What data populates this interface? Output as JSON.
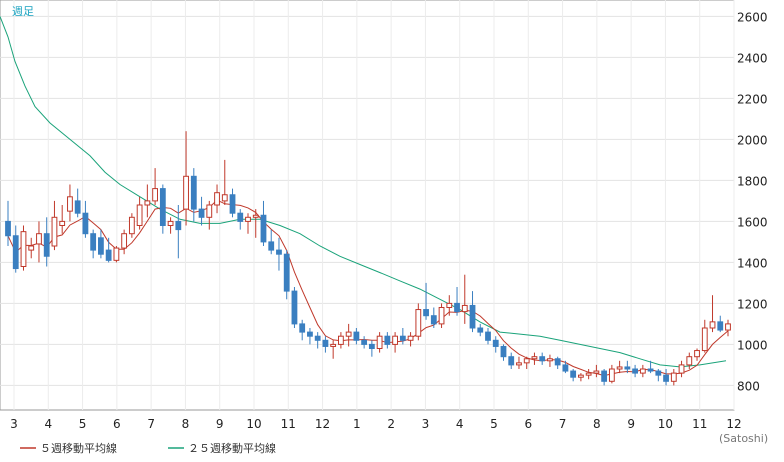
{
  "chart_data": {
    "type": "candlestick",
    "period_label": "週足",
    "unit_label": "(Satoshi)",
    "y_ticks": [
      800,
      1000,
      1200,
      1400,
      1600,
      1800,
      2000,
      2200,
      2400,
      2600
    ],
    "ylim": [
      680,
      2680
    ],
    "x_tick_labels": [
      "3",
      "4",
      "5",
      "6",
      "7",
      "8",
      "9",
      "10",
      "11",
      "12",
      "1",
      "2",
      "3",
      "4",
      "5",
      "6",
      "7",
      "8",
      "9",
      "10",
      "11",
      "12"
    ],
    "grid": true,
    "colors": {
      "up": "#c0392b",
      "down": "#3a7fc0",
      "ma5": "#c0392b",
      "ma25": "#1aa37a"
    },
    "legend": [
      {
        "label": "５週移動平均線",
        "color": "#c0392b"
      },
      {
        "label": "２５週移動平均線",
        "color": "#1aa37a"
      }
    ],
    "candles": [
      [
        1600,
        1700,
        1480,
        1530
      ],
      [
        1530,
        1580,
        1350,
        1370
      ],
      [
        1380,
        1580,
        1360,
        1550
      ],
      [
        1460,
        1520,
        1420,
        1480
      ],
      [
        1490,
        1600,
        1400,
        1540
      ],
      [
        1540,
        1620,
        1380,
        1430
      ],
      [
        1480,
        1700,
        1460,
        1620
      ],
      [
        1580,
        1680,
        1540,
        1600
      ],
      [
        1650,
        1780,
        1600,
        1720
      ],
      [
        1700,
        1760,
        1620,
        1640
      ],
      [
        1640,
        1700,
        1520,
        1540
      ],
      [
        1540,
        1560,
        1420,
        1460
      ],
      [
        1520,
        1560,
        1420,
        1440
      ],
      [
        1460,
        1520,
        1400,
        1410
      ],
      [
        1410,
        1480,
        1400,
        1470
      ],
      [
        1470,
        1560,
        1440,
        1540
      ],
      [
        1540,
        1640,
        1520,
        1620
      ],
      [
        1580,
        1720,
        1560,
        1680
      ],
      [
        1680,
        1780,
        1620,
        1700
      ],
      [
        1700,
        1860,
        1680,
        1760
      ],
      [
        1760,
        1780,
        1540,
        1580
      ],
      [
        1580,
        1620,
        1540,
        1600
      ],
      [
        1600,
        1680,
        1420,
        1560
      ],
      [
        1660,
        2040,
        1580,
        1820
      ],
      [
        1820,
        1860,
        1600,
        1660
      ],
      [
        1660,
        1720,
        1580,
        1620
      ],
      [
        1620,
        1700,
        1560,
        1680
      ],
      [
        1680,
        1780,
        1640,
        1740
      ],
      [
        1700,
        1900,
        1680,
        1730
      ],
      [
        1730,
        1760,
        1620,
        1640
      ],
      [
        1640,
        1660,
        1560,
        1600
      ],
      [
        1600,
        1640,
        1540,
        1620
      ],
      [
        1620,
        1660,
        1520,
        1630
      ],
      [
        1630,
        1700,
        1480,
        1500
      ],
      [
        1500,
        1560,
        1440,
        1460
      ],
      [
        1460,
        1520,
        1360,
        1440
      ],
      [
        1440,
        1460,
        1220,
        1260
      ],
      [
        1260,
        1280,
        1080,
        1100
      ],
      [
        1100,
        1120,
        1020,
        1060
      ],
      [
        1060,
        1080,
        1000,
        1040
      ],
      [
        1040,
        1060,
        980,
        1020
      ],
      [
        1020,
        1040,
        960,
        990
      ],
      [
        990,
        1020,
        930,
        1000
      ],
      [
        1000,
        1060,
        980,
        1040
      ],
      [
        1040,
        1100,
        990,
        1060
      ],
      [
        1060,
        1080,
        1000,
        1020
      ],
      [
        1020,
        1040,
        980,
        1000
      ],
      [
        1000,
        1020,
        940,
        980
      ],
      [
        980,
        1060,
        960,
        1040
      ],
      [
        1040,
        1060,
        980,
        1000
      ],
      [
        1000,
        1060,
        960,
        1040
      ],
      [
        1040,
        1080,
        1000,
        1020
      ],
      [
        1020,
        1060,
        990,
        1040
      ],
      [
        1040,
        1200,
        1020,
        1170
      ],
      [
        1170,
        1300,
        1120,
        1140
      ],
      [
        1140,
        1180,
        1080,
        1100
      ],
      [
        1100,
        1200,
        1080,
        1180
      ],
      [
        1180,
        1240,
        1140,
        1200
      ],
      [
        1200,
        1280,
        1140,
        1160
      ],
      [
        1160,
        1340,
        1100,
        1190
      ],
      [
        1190,
        1260,
        1060,
        1080
      ],
      [
        1080,
        1100,
        1040,
        1060
      ],
      [
        1060,
        1080,
        1000,
        1020
      ],
      [
        1020,
        1040,
        960,
        990
      ],
      [
        990,
        1000,
        920,
        940
      ],
      [
        940,
        960,
        880,
        900
      ],
      [
        900,
        940,
        880,
        910
      ],
      [
        910,
        940,
        880,
        930
      ],
      [
        930,
        960,
        900,
        940
      ],
      [
        940,
        960,
        900,
        920
      ],
      [
        920,
        950,
        890,
        930
      ],
      [
        930,
        940,
        880,
        900
      ],
      [
        900,
        920,
        860,
        870
      ],
      [
        870,
        880,
        820,
        840
      ],
      [
        840,
        860,
        820,
        850
      ],
      [
        850,
        880,
        830,
        860
      ],
      [
        860,
        900,
        840,
        870
      ],
      [
        870,
        880,
        800,
        820
      ],
      [
        820,
        900,
        810,
        880
      ],
      [
        880,
        920,
        860,
        890
      ],
      [
        890,
        920,
        860,
        880
      ],
      [
        880,
        900,
        840,
        860
      ],
      [
        860,
        900,
        840,
        880
      ],
      [
        880,
        920,
        860,
        870
      ],
      [
        870,
        880,
        820,
        850
      ],
      [
        850,
        880,
        800,
        820
      ],
      [
        820,
        880,
        800,
        860
      ],
      [
        860,
        920,
        840,
        900
      ],
      [
        900,
        960,
        880,
        940
      ],
      [
        940,
        980,
        920,
        970
      ],
      [
        970,
        1120,
        960,
        1080
      ],
      [
        1080,
        1240,
        1060,
        1110
      ],
      [
        1110,
        1140,
        1060,
        1070
      ],
      [
        1070,
        1120,
        1040,
        1100
      ]
    ],
    "ma25": [
      [
        0,
        2600
      ],
      [
        8,
        2500
      ],
      [
        15,
        2380
      ],
      [
        25,
        2260
      ],
      [
        35,
        2160
      ],
      [
        50,
        2080
      ],
      [
        70,
        2000
      ],
      [
        90,
        1920
      ],
      [
        105,
        1840
      ],
      [
        120,
        1780
      ],
      [
        140,
        1720
      ],
      [
        160,
        1660
      ],
      [
        180,
        1610
      ],
      [
        200,
        1590
      ],
      [
        220,
        1590
      ],
      [
        240,
        1610
      ],
      [
        260,
        1610
      ],
      [
        280,
        1580
      ],
      [
        300,
        1540
      ],
      [
        320,
        1480
      ],
      [
        340,
        1430
      ],
      [
        360,
        1390
      ],
      [
        380,
        1350
      ],
      [
        400,
        1310
      ],
      [
        420,
        1270
      ],
      [
        440,
        1220
      ],
      [
        460,
        1170
      ],
      [
        480,
        1110
      ],
      [
        500,
        1060
      ],
      [
        520,
        1050
      ],
      [
        540,
        1040
      ],
      [
        560,
        1020
      ],
      [
        580,
        1000
      ],
      [
        600,
        980
      ],
      [
        620,
        960
      ],
      [
        640,
        930
      ],
      [
        660,
        900
      ],
      [
        680,
        890
      ],
      [
        700,
        900
      ],
      [
        726,
        920
      ]
    ]
  }
}
